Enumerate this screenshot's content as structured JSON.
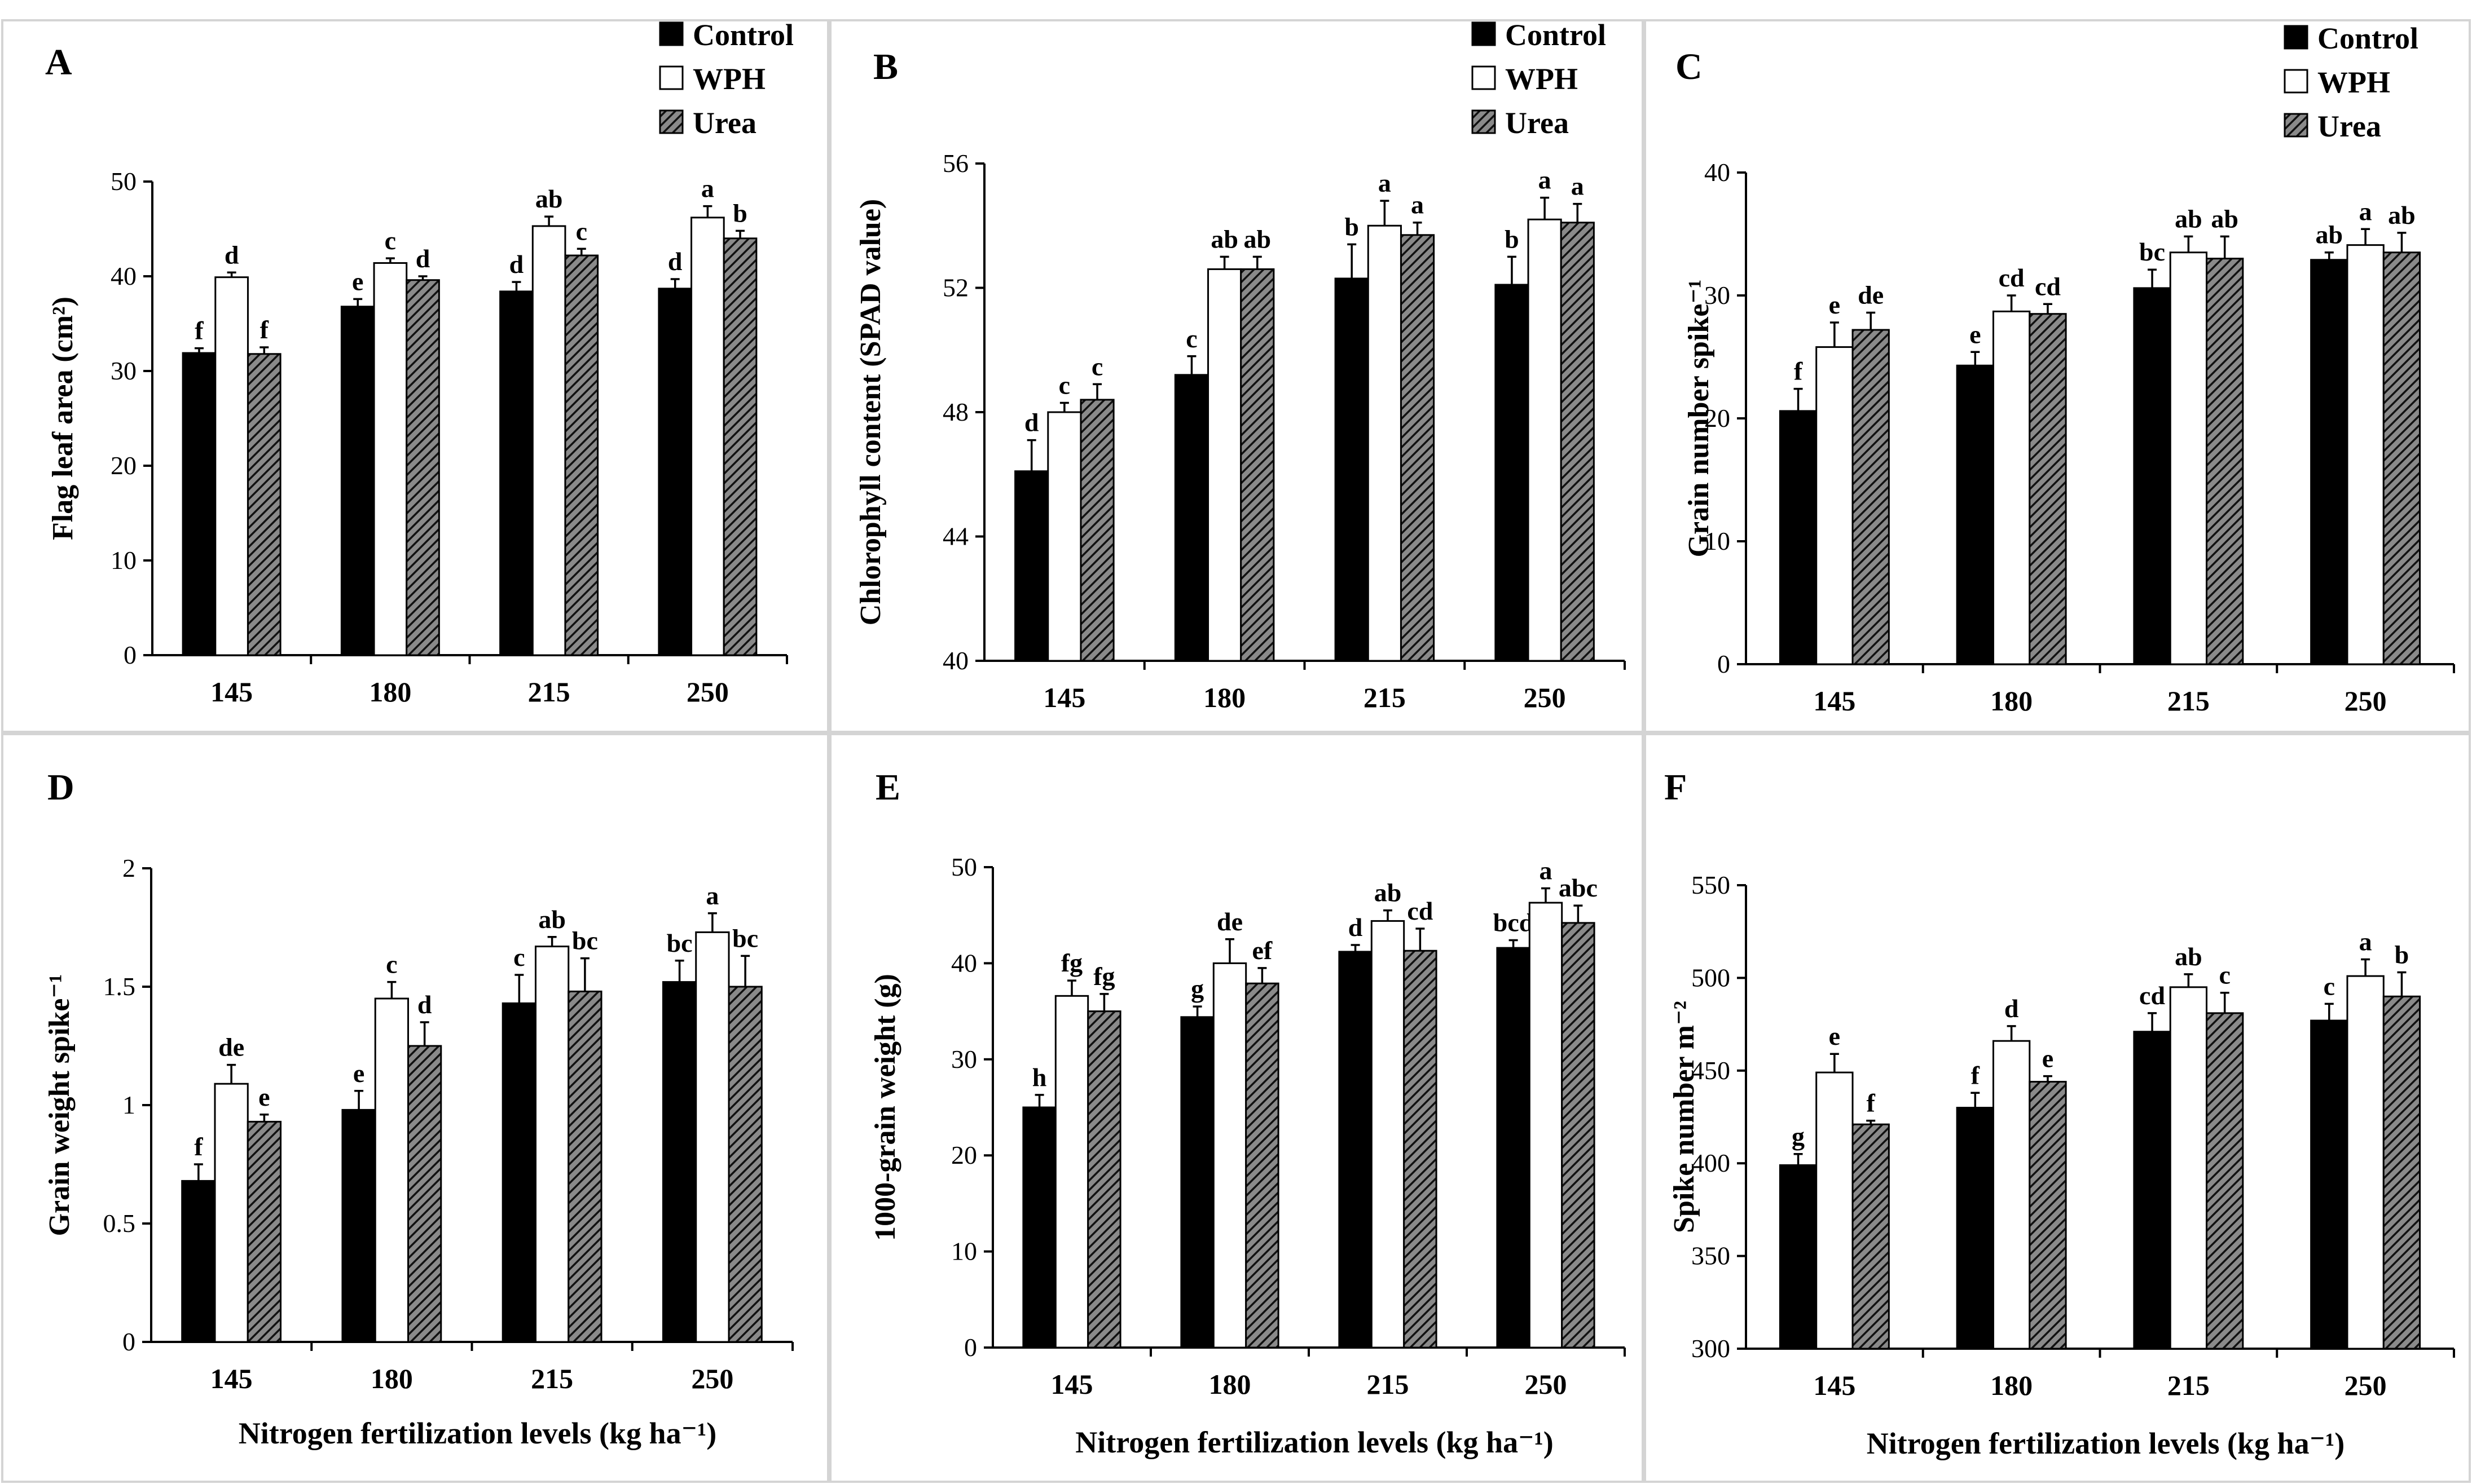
{
  "figure": {
    "legend_series": [
      "Control",
      "WPH",
      "Urea"
    ],
    "series_colors": {
      "Control": "#000000",
      "WPH": "#ffffff",
      "Urea": "#404040"
    },
    "shared_xlabel": "Nitrogen fertilization levels (kg ha⁻¹)"
  },
  "chart_data": [
    {
      "panel": "A",
      "type": "bar",
      "ylabel": "Flag leaf area (cm²)",
      "categories": [
        "145",
        "180",
        "215",
        "250"
      ],
      "ylim": [
        0,
        50
      ],
      "yticks": [
        0,
        10,
        20,
        30,
        40,
        50
      ],
      "series": [
        {
          "name": "Control",
          "values": [
            31.9,
            36.8,
            38.4,
            38.7
          ],
          "errors": [
            0.5,
            0.8,
            1.0,
            1.0
          ],
          "letters": [
            "f",
            "e",
            "d",
            "d"
          ]
        },
        {
          "name": "WPH",
          "values": [
            39.9,
            41.4,
            45.3,
            46.2
          ],
          "errors": [
            0.5,
            0.5,
            1.0,
            1.2
          ],
          "letters": [
            "d",
            "c",
            "ab",
            "a"
          ]
        },
        {
          "name": "Urea",
          "values": [
            31.8,
            39.6,
            42.2,
            44.0
          ],
          "errors": [
            0.7,
            0.4,
            0.7,
            0.8
          ],
          "letters": [
            "f",
            "d",
            "c",
            "b"
          ]
        }
      ]
    },
    {
      "panel": "B",
      "type": "bar",
      "ylabel": "Chlorophyll content  (SPAD value)",
      "categories": [
        "145",
        "180",
        "215",
        "250"
      ],
      "ylim": [
        40,
        56
      ],
      "yticks": [
        40,
        44,
        48,
        52,
        56
      ],
      "series": [
        {
          "name": "Control",
          "values": [
            46.1,
            49.2,
            52.3,
            52.1
          ],
          "errors": [
            1.0,
            0.6,
            1.1,
            0.9
          ],
          "letters": [
            "d",
            "c",
            "b",
            "b"
          ]
        },
        {
          "name": "WPH",
          "values": [
            48.0,
            52.6,
            54.0,
            54.2
          ],
          "errors": [
            0.3,
            0.4,
            0.8,
            0.7
          ],
          "letters": [
            "c",
            "ab",
            "a",
            "a"
          ]
        },
        {
          "name": "Urea",
          "values": [
            48.4,
            52.6,
            53.7,
            54.1
          ],
          "errors": [
            0.5,
            0.4,
            0.4,
            0.6
          ],
          "letters": [
            "c",
            "ab",
            "a",
            "a"
          ]
        }
      ]
    },
    {
      "panel": "C",
      "type": "bar",
      "ylabel": "Grain number spike⁻¹",
      "categories": [
        "145",
        "180",
        "215",
        "250"
      ],
      "ylim": [
        0,
        40
      ],
      "yticks": [
        0,
        10,
        20,
        30,
        40
      ],
      "series": [
        {
          "name": "Control",
          "values": [
            20.6,
            24.3,
            30.6,
            32.9
          ],
          "errors": [
            1.8,
            1.1,
            1.5,
            0.6
          ],
          "letters": [
            "f",
            "e",
            "bc",
            "ab"
          ]
        },
        {
          "name": "WPH",
          "values": [
            25.8,
            28.7,
            33.5,
            34.1
          ],
          "errors": [
            2.0,
            1.3,
            1.3,
            1.3
          ],
          "letters": [
            "e",
            "cd",
            "ab",
            "a"
          ]
        },
        {
          "name": "Urea",
          "values": [
            27.2,
            28.5,
            33.0,
            33.5
          ],
          "errors": [
            1.4,
            0.8,
            1.8,
            1.6
          ],
          "letters": [
            "de",
            "cd",
            "ab",
            "ab"
          ]
        }
      ]
    },
    {
      "panel": "D",
      "type": "bar",
      "ylabel": "Grain weight spike⁻¹",
      "categories": [
        "145",
        "180",
        "215",
        "250"
      ],
      "ylim": [
        0,
        2
      ],
      "yticks": [
        0,
        0.5,
        1,
        1.5,
        2
      ],
      "series": [
        {
          "name": "Control",
          "values": [
            0.68,
            0.98,
            1.43,
            1.52
          ],
          "errors": [
            0.07,
            0.08,
            0.12,
            0.09
          ],
          "letters": [
            "f",
            "e",
            "c",
            "bc"
          ]
        },
        {
          "name": "WPH",
          "values": [
            1.09,
            1.45,
            1.67,
            1.73
          ],
          "errors": [
            0.08,
            0.07,
            0.04,
            0.08
          ],
          "letters": [
            "de",
            "c",
            "ab",
            "a"
          ]
        },
        {
          "name": "Urea",
          "values": [
            0.93,
            1.25,
            1.48,
            1.5
          ],
          "errors": [
            0.03,
            0.1,
            0.14,
            0.13
          ],
          "letters": [
            "e",
            "d",
            "bc",
            "bc"
          ]
        }
      ]
    },
    {
      "panel": "E",
      "type": "bar",
      "ylabel": "1000-grain weight (g)",
      "categories": [
        "145",
        "180",
        "215",
        "250"
      ],
      "ylim": [
        0,
        50
      ],
      "yticks": [
        0,
        10,
        20,
        30,
        40,
        50
      ],
      "series": [
        {
          "name": "Control",
          "values": [
            25.0,
            34.4,
            41.2,
            41.6
          ],
          "errors": [
            1.3,
            1.1,
            0.7,
            0.8
          ],
          "letters": [
            "h",
            "g",
            "d",
            "bcd"
          ]
        },
        {
          "name": "WPH",
          "values": [
            36.6,
            40.0,
            44.4,
            46.3
          ],
          "errors": [
            1.6,
            2.5,
            1.1,
            1.5
          ],
          "letters": [
            "fg",
            "de",
            "ab",
            "a"
          ]
        },
        {
          "name": "Urea",
          "values": [
            35.0,
            37.9,
            41.3,
            44.2
          ],
          "errors": [
            1.8,
            1.6,
            2.3,
            1.8
          ],
          "letters": [
            "fg",
            "ef",
            "cd",
            "abc"
          ]
        }
      ]
    },
    {
      "panel": "F",
      "type": "bar",
      "ylabel": "Spike number m⁻²",
      "categories": [
        "145",
        "180",
        "215",
        "250"
      ],
      "ylim": [
        300,
        550
      ],
      "yticks": [
        300,
        350,
        400,
        450,
        500,
        550
      ],
      "series": [
        {
          "name": "Control",
          "values": [
            399,
            430,
            471,
            477
          ],
          "errors": [
            6,
            8,
            10,
            9
          ],
          "letters": [
            "g",
            "f",
            "cd",
            "c"
          ]
        },
        {
          "name": "WPH",
          "values": [
            449,
            466,
            495,
            501
          ],
          "errors": [
            10,
            8,
            7,
            9
          ],
          "letters": [
            "e",
            "d",
            "ab",
            "a"
          ]
        },
        {
          "name": "Urea",
          "values": [
            421,
            444,
            481,
            490
          ],
          "errors": [
            2,
            3,
            11,
            13
          ],
          "letters": [
            "f",
            "e",
            "c",
            "b"
          ]
        }
      ]
    }
  ]
}
